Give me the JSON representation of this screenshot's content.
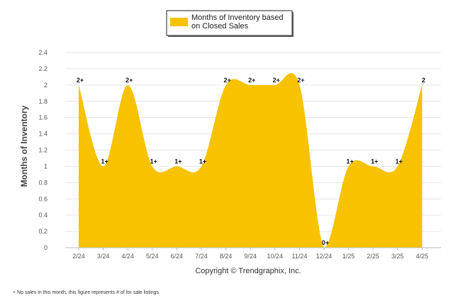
{
  "chart_data": {
    "type": "area",
    "categories": [
      "2/24",
      "3/24",
      "4/24",
      "5/24",
      "6/24",
      "7/24",
      "8/24",
      "9/24",
      "10/24",
      "11/24",
      "12/24",
      "1/25",
      "2/25",
      "3/25",
      "4/25"
    ],
    "series": [
      {
        "name": "Months of Inventory based on Closed Sales",
        "values": [
          2,
          1,
          2,
          1,
          1,
          1,
          2,
          2,
          2,
          2,
          0,
          1,
          1,
          1,
          2
        ],
        "data_labels": [
          "2+",
          "1+",
          "2+",
          "1+",
          "1+",
          "1+",
          "2+",
          "2+",
          "2+",
          "2+",
          "0+",
          "1+",
          "1+",
          "1+",
          "2"
        ]
      }
    ],
    "legend_lines": [
      "Months of Inventory based",
      "on Closed Sales"
    ],
    "legend_position": "top-center",
    "ylabel": "Months of Inventory",
    "xlabel": "",
    "ylim": [
      0,
      2.4
    ],
    "yticks": [
      "0",
      "0.2",
      "0.4",
      "0.6",
      "0.8",
      "1",
      "1.2",
      "1.4",
      "1.6",
      "1.8",
      "2",
      "2.2",
      "2.4"
    ],
    "grid": true,
    "colors": {
      "fill": "#F7C200",
      "grid": "#e6e6e6",
      "axis": "#bbbbbb"
    }
  },
  "copyright": "Copyright © Trendgraphix, Inc.",
  "footnote": "+ No sales in this month, this figure represents # of for sale listings"
}
